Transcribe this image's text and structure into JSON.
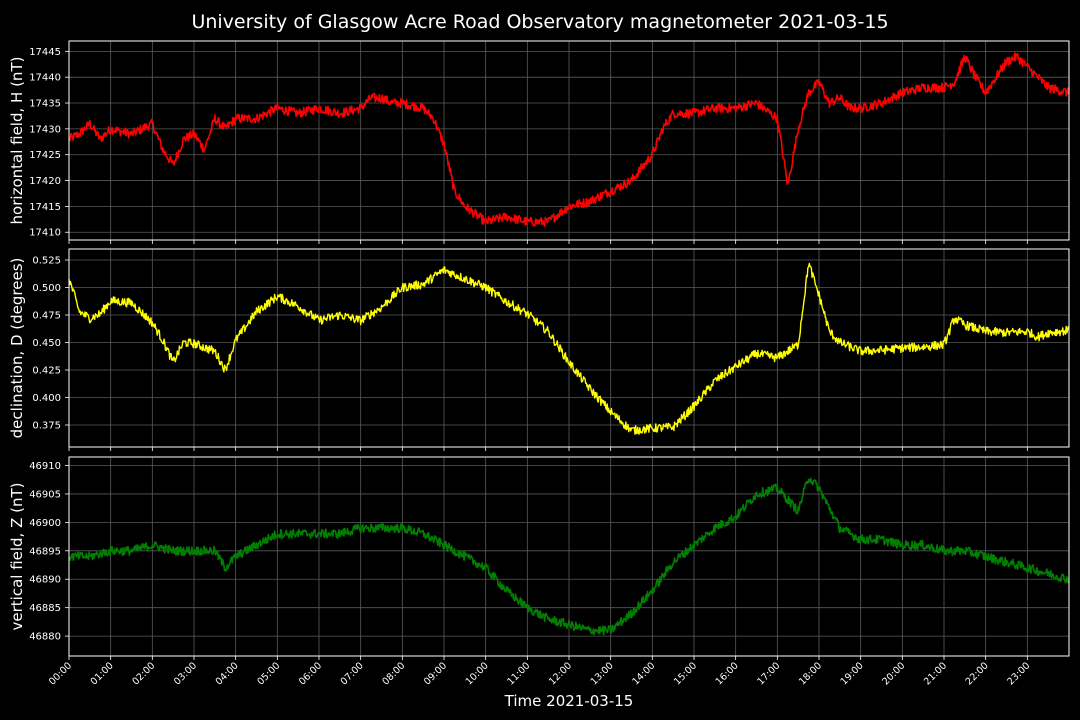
{
  "title": "University of Glasgow Acre Road Observatory magnetometer 2021-03-15",
  "xlabel": "Time 2021-03-15",
  "x_ticks": [
    "00:00",
    "01:00",
    "02:00",
    "03:00",
    "04:00",
    "05:00",
    "06:00",
    "07:00",
    "08:00",
    "09:00",
    "10:00",
    "11:00",
    "12:00",
    "13:00",
    "14:00",
    "15:00",
    "16:00",
    "17:00",
    "18:00",
    "19:00",
    "20:00",
    "21:00",
    "22:00",
    "23:00"
  ],
  "chart_data": [
    {
      "type": "line",
      "ylabel": "horizontal field, H (nT)",
      "color": "#ff0000",
      "ylim": [
        17408.5,
        17447
      ],
      "y_ticks": [
        17410,
        17415,
        17420,
        17425,
        17430,
        17435,
        17440,
        17445
      ],
      "noise": 0.9,
      "x": [
        "00:00",
        "00:15",
        "00:30",
        "00:45",
        "01:00",
        "01:30",
        "02:00",
        "02:15",
        "02:30",
        "02:45",
        "03:00",
        "03:15",
        "03:30",
        "03:45",
        "04:00",
        "04:30",
        "05:00",
        "05:30",
        "06:00",
        "06:30",
        "07:00",
        "07:15",
        "07:30",
        "07:45",
        "08:00",
        "08:30",
        "08:45",
        "09:00",
        "09:15",
        "09:30",
        "10:00",
        "10:30",
        "11:00",
        "11:30",
        "12:00",
        "12:30",
        "13:00",
        "13:30",
        "14:00",
        "14:15",
        "14:30",
        "15:00",
        "15:30",
        "16:00",
        "16:30",
        "17:00",
        "17:15",
        "17:30",
        "17:45",
        "18:00",
        "18:15",
        "18:30",
        "18:45",
        "19:00",
        "19:30",
        "20:00",
        "20:30",
        "21:00",
        "21:15",
        "21:30",
        "21:45",
        "22:00",
        "22:30",
        "22:45",
        "23:00",
        "23:30",
        "23:59"
      ],
      "values": [
        17428,
        17429,
        17431,
        17428,
        17430,
        17429,
        17431,
        17426,
        17423,
        17428,
        17429,
        17426,
        17432,
        17430,
        17432,
        17432,
        17434,
        17433,
        17434,
        17433,
        17434,
        17436,
        17436,
        17435,
        17435,
        17434,
        17432,
        17427,
        17418,
        17415,
        17412,
        17413,
        17412,
        17412,
        17415,
        17416,
        17418,
        17420,
        17425,
        17430,
        17433,
        17433,
        17434,
        17434,
        17435,
        17432,
        17419,
        17430,
        17437,
        17439,
        17435,
        17436,
        17434,
        17434,
        17435,
        17437,
        17438,
        17438,
        17439,
        17444,
        17440,
        17437,
        17443,
        17444,
        17442,
        17438,
        17437
      ]
    },
    {
      "type": "line",
      "ylabel": "declination, D (degrees)",
      "color": "#ffff00",
      "ylim": [
        0.355,
        0.535
      ],
      "y_ticks": [
        0.375,
        0.4,
        0.425,
        0.45,
        0.475,
        0.5,
        0.525
      ],
      "noise": 0.004,
      "x": [
        "00:00",
        "00:15",
        "00:30",
        "00:45",
        "01:00",
        "01:30",
        "02:00",
        "02:15",
        "02:30",
        "02:45",
        "03:00",
        "03:30",
        "03:45",
        "04:00",
        "04:30",
        "05:00",
        "05:30",
        "06:00",
        "06:30",
        "07:00",
        "07:30",
        "08:00",
        "08:30",
        "09:00",
        "09:30",
        "10:00",
        "10:30",
        "11:00",
        "11:30",
        "12:00",
        "12:30",
        "13:00",
        "13:30",
        "14:00",
        "14:30",
        "15:00",
        "15:30",
        "16:00",
        "16:30",
        "17:00",
        "17:30",
        "17:45",
        "18:00",
        "18:15",
        "18:30",
        "19:00",
        "19:30",
        "20:00",
        "20:30",
        "21:00",
        "21:15",
        "21:30",
        "22:00",
        "22:30",
        "23:00",
        "23:15",
        "23:30",
        "23:59"
      ],
      "values": [
        0.508,
        0.478,
        0.472,
        0.476,
        0.488,
        0.486,
        0.468,
        0.452,
        0.432,
        0.45,
        0.449,
        0.442,
        0.425,
        0.452,
        0.478,
        0.492,
        0.483,
        0.47,
        0.475,
        0.47,
        0.482,
        0.5,
        0.503,
        0.516,
        0.508,
        0.5,
        0.487,
        0.476,
        0.46,
        0.432,
        0.408,
        0.387,
        0.37,
        0.372,
        0.373,
        0.392,
        0.415,
        0.428,
        0.44,
        0.436,
        0.448,
        0.522,
        0.493,
        0.46,
        0.45,
        0.442,
        0.443,
        0.445,
        0.446,
        0.448,
        0.472,
        0.466,
        0.46,
        0.459,
        0.46,
        0.455,
        0.459,
        0.461
      ]
    },
    {
      "type": "line",
      "ylabel": "vertical field, Z (nT)",
      "color": "#008000",
      "ylim": [
        46876.5,
        46911.5
      ],
      "y_ticks": [
        46880,
        46885,
        46890,
        46895,
        46900,
        46905,
        46910
      ],
      "noise": 0.8,
      "x": [
        "00:00",
        "00:30",
        "01:00",
        "01:30",
        "02:00",
        "02:30",
        "03:00",
        "03:30",
        "03:45",
        "04:00",
        "04:30",
        "05:00",
        "05:30",
        "06:00",
        "06:30",
        "07:00",
        "07:30",
        "08:00",
        "08:30",
        "09:00",
        "09:30",
        "10:00",
        "10:30",
        "11:00",
        "11:30",
        "12:00",
        "12:30",
        "13:00",
        "13:30",
        "14:00",
        "14:30",
        "15:00",
        "15:30",
        "16:00",
        "16:30",
        "17:00",
        "17:30",
        "17:45",
        "18:00",
        "18:30",
        "19:00",
        "19:30",
        "20:00",
        "20:30",
        "21:00",
        "21:30",
        "22:00",
        "22:30",
        "23:00",
        "23:30",
        "23:59"
      ],
      "values": [
        46894,
        46894,
        46895,
        46895,
        46896,
        46895,
        46895,
        46895,
        46892,
        46894,
        46896,
        46898,
        46898,
        46898,
        46898,
        46899,
        46899,
        46899,
        46898,
        46896,
        46894,
        46892,
        46888,
        46885,
        46883,
        46882,
        46881,
        46881,
        46884,
        46888,
        46893,
        46896,
        46899,
        46901,
        46905,
        46906,
        46902,
        46908,
        46906,
        46899,
        46897,
        46897,
        46896,
        46896,
        46895,
        46895,
        46894,
        46893,
        46892,
        46891,
        46890
      ]
    }
  ]
}
